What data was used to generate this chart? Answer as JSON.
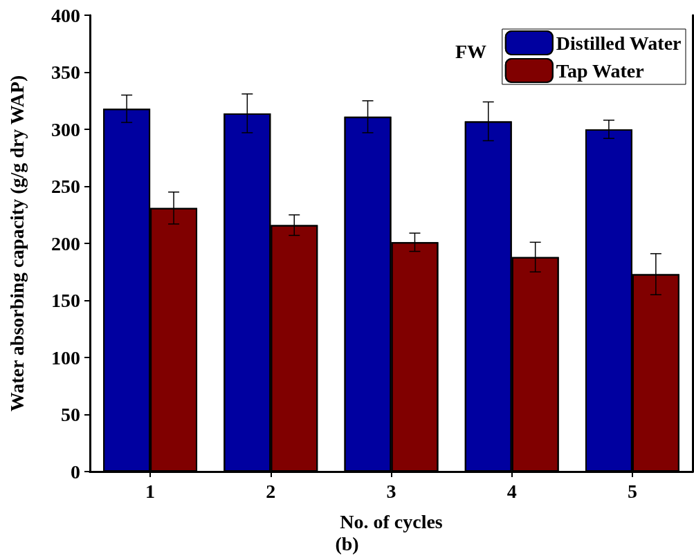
{
  "chart_data": {
    "type": "bar",
    "xlabel": "No. of cycles",
    "ylabel": "Water absorbing capacity (g/g dry WAP)",
    "annotations": [
      "FW",
      "(b)"
    ],
    "categories": [
      "1",
      "2",
      "3",
      "4",
      "5"
    ],
    "series": [
      {
        "name": "Distilled Water",
        "color": "#0000a0",
        "values": [
          318,
          314,
          311,
          307,
          300
        ],
        "errors": [
          12,
          17,
          14,
          17,
          8
        ]
      },
      {
        "name": "Tap Water",
        "color": "#800000",
        "values": [
          231,
          216,
          201,
          188,
          173
        ],
        "errors": [
          14,
          9,
          8,
          13,
          18
        ]
      }
    ],
    "ylim": [
      0,
      400
    ],
    "yticks": [
      0,
      50,
      100,
      150,
      200,
      250,
      300,
      350,
      400
    ],
    "grid": false,
    "legend": "top right"
  }
}
